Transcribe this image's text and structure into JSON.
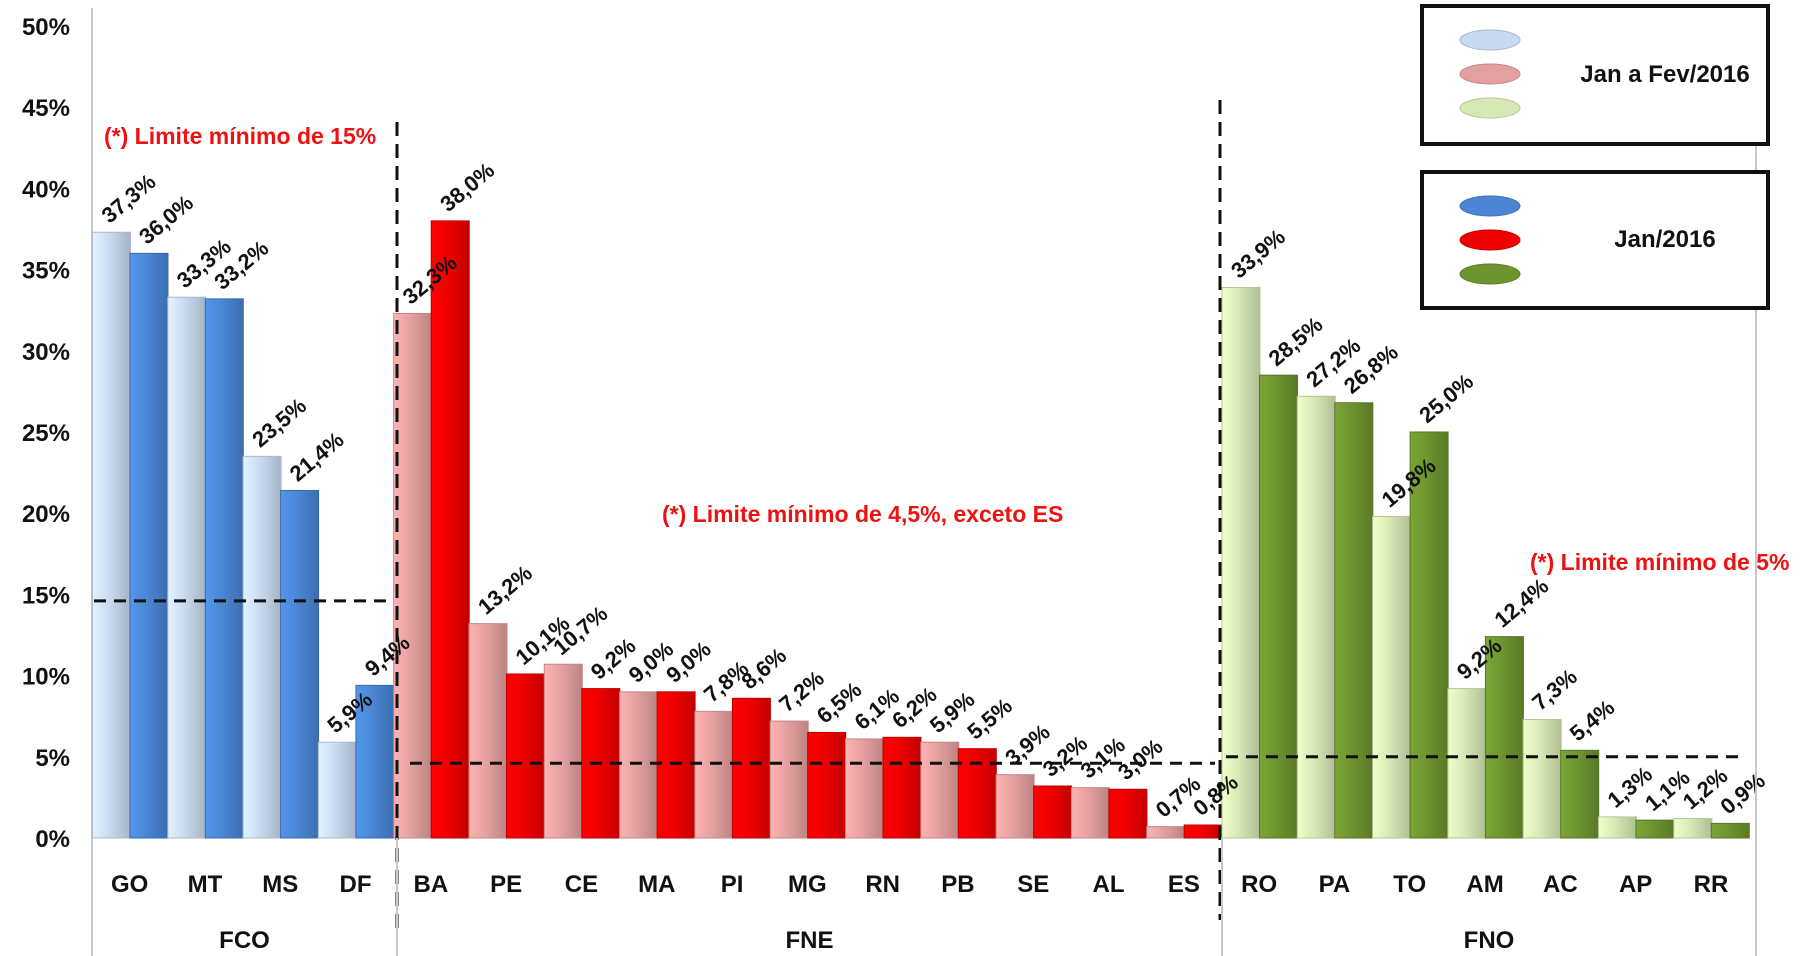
{
  "chart_data": {
    "type": "bar",
    "ylim": [
      0,
      50
    ],
    "y_ticks": [
      "0%",
      "5%",
      "10%",
      "15%",
      "20%",
      "25%",
      "30%",
      "35%",
      "40%",
      "45%",
      "50%"
    ],
    "value_suffix": "%",
    "legend": {
      "position": "top-right",
      "series_group_labels": [
        "Jan a Fev/2016",
        "Jan/2016"
      ]
    },
    "groups": [
      {
        "name": "FCO",
        "light_color": "#c9daf0",
        "dark_color": "#4a86d4",
        "categories": [
          "GO",
          "MT",
          "MS",
          "DF"
        ],
        "series": [
          {
            "name": "Jan a Fev/2016",
            "values": [
              37.3,
              33.3,
              23.5,
              5.9
            ],
            "labels": [
              "37,3%",
              "33,3%",
              "23,5%",
              "5,9%"
            ]
          },
          {
            "name": "Jan/2016",
            "values": [
              36.0,
              33.2,
              21.4,
              9.4
            ],
            "labels": [
              "36,0%",
              "33,2%",
              "21,4%",
              "9,4%"
            ]
          }
        ],
        "threshold": 14.6,
        "annotation": "(*) Limite mínimo de 15%"
      },
      {
        "name": "FNE",
        "light_color": "#e4a0a0",
        "dark_color": "#ee0000",
        "categories": [
          "BA",
          "PE",
          "CE",
          "MA",
          "PI",
          "MG",
          "RN",
          "PB",
          "SE",
          "AL",
          "ES"
        ],
        "series": [
          {
            "name": "Jan a Fev/2016",
            "values": [
              32.3,
              13.2,
              10.7,
              9.0,
              7.8,
              7.2,
              6.1,
              5.9,
              3.9,
              3.1,
              0.7
            ],
            "labels": [
              "32,3%",
              "13,2%",
              "10,7%",
              "9,0%",
              "7,8%",
              "7,2%",
              "6,1%",
              "5,9%",
              "3,9%",
              "3,1%",
              "0,7%"
            ]
          },
          {
            "name": "Jan/2016",
            "values": [
              38.0,
              10.1,
              9.2,
              9.0,
              8.6,
              6.5,
              6.2,
              5.5,
              3.2,
              3.0,
              0.8
            ],
            "labels": [
              "38,0%",
              "10,1%",
              "9,2%",
              "9,0%",
              "8,6%",
              "6,5%",
              "6,2%",
              "5,5%",
              "3,2%",
              "3,0%",
              "0,8%"
            ]
          }
        ],
        "threshold": 4.6,
        "annotation": "(*) Limite mínimo de 4,5%, exceto ES"
      },
      {
        "name": "FNO",
        "light_color": "#d6e8b4",
        "dark_color": "#6e9430",
        "categories": [
          "RO",
          "PA",
          "TO",
          "AM",
          "AC",
          "AP",
          "RR"
        ],
        "series": [
          {
            "name": "Jan a Fev/2016",
            "values": [
              33.9,
              27.2,
              19.8,
              9.2,
              7.3,
              1.3,
              1.2
            ],
            "labels": [
              "33,9%",
              "27,2%",
              "19,8%",
              "9,2%",
              "7,3%",
              "1,3%",
              "1,2%"
            ]
          },
          {
            "name": "Jan/2016",
            "values": [
              28.5,
              26.8,
              25.0,
              12.4,
              5.4,
              1.1,
              0.9
            ],
            "labels": [
              "28,5%",
              "26,8%",
              "25,0%",
              "12,4%",
              "5,4%",
              "1,1%",
              "0,9%"
            ]
          }
        ],
        "threshold": 5.0,
        "annotation": "(*) Limite mínimo de 5%"
      }
    ]
  }
}
